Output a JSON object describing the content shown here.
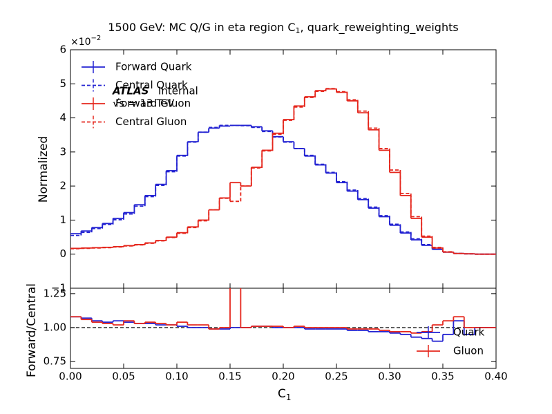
{
  "chart_data": [
    {
      "type": "histogram",
      "title": {
        "text": "1500 GeV: MC Q/G in eta region C",
        "subscript": "1",
        "suffix": ", quark_reweighting_weights"
      },
      "y_offset": {
        "base": "×10",
        "exponent": "−2"
      },
      "ylabel": "Normalized",
      "annotations": {
        "atlas": "ATLAS",
        "internal": "Internal",
        "energy": "√s = 13 TeV"
      },
      "xlim": [
        0,
        0.4
      ],
      "xticks": [
        0,
        0.05,
        0.1,
        0.15,
        0.2,
        0.25,
        0.3,
        0.35,
        0.4
      ],
      "ylim": [
        -1,
        6
      ],
      "yticks": [
        {
          "value": -1,
          "label": "−1"
        },
        0,
        1,
        2,
        3,
        4,
        5,
        6
      ],
      "legend": "upper left",
      "bins": [
        0,
        0.01,
        0.02,
        0.03,
        0.04,
        0.05,
        0.06,
        0.07,
        0.08,
        0.09,
        0.1,
        0.11,
        0.12,
        0.13,
        0.14,
        0.15,
        0.16,
        0.17,
        0.18,
        0.19,
        0.2,
        0.21,
        0.22,
        0.23,
        0.24,
        0.25,
        0.26,
        0.27,
        0.28,
        0.29,
        0.3,
        0.31,
        0.32,
        0.33,
        0.34,
        0.35,
        0.36,
        0.37,
        0.38,
        0.39,
        0.4
      ],
      "series": [
        {
          "name": "Forward Quark",
          "color": "#2323d2",
          "dashed": false,
          "values": [
            0.6,
            0.68,
            0.78,
            0.9,
            1.05,
            1.22,
            1.45,
            1.72,
            2.05,
            2.45,
            2.9,
            3.3,
            3.58,
            3.7,
            3.76,
            3.78,
            3.78,
            3.74,
            3.62,
            3.45,
            3.3,
            3.1,
            2.88,
            2.62,
            2.38,
            2.1,
            1.85,
            1.6,
            1.35,
            1.1,
            0.85,
            0.62,
            0.42,
            0.26,
            0.14,
            0.06,
            0.02,
            0.01,
            0,
            0
          ]
        },
        {
          "name": "Central Quark",
          "color": "#2323d2",
          "dashed": true,
          "values": [
            0.55,
            0.64,
            0.75,
            0.87,
            1.01,
            1.18,
            1.41,
            1.69,
            2.02,
            2.42,
            2.88,
            3.29,
            3.58,
            3.72,
            3.78,
            3.78,
            3.77,
            3.72,
            3.6,
            3.44,
            3.29,
            3.1,
            2.9,
            2.64,
            2.4,
            2.13,
            1.88,
            1.63,
            1.38,
            1.13,
            0.88,
            0.65,
            0.45,
            0.28,
            0.15,
            0.06,
            0.02,
            0.01,
            0,
            0
          ]
        },
        {
          "name": "Forward Gluon",
          "color": "#e5261c",
          "dashed": false,
          "values": [
            0.17,
            0.18,
            0.19,
            0.2,
            0.22,
            0.25,
            0.28,
            0.33,
            0.4,
            0.5,
            0.63,
            0.8,
            1.0,
            1.3,
            1.65,
            2.1,
            2.0,
            2.55,
            3.05,
            3.55,
            3.95,
            4.35,
            4.62,
            4.8,
            4.85,
            4.75,
            4.5,
            4.15,
            3.65,
            3.05,
            2.4,
            1.72,
            1.05,
            0.5,
            0.18,
            0.06,
            0.02,
            0.01,
            0,
            0
          ]
        },
        {
          "name": "Central Gluon",
          "color": "#e5261c",
          "dashed": true,
          "values": [
            0.16,
            0.17,
            0.18,
            0.19,
            0.21,
            0.24,
            0.27,
            0.32,
            0.39,
            0.49,
            0.61,
            0.78,
            0.98,
            1.3,
            1.64,
            1.55,
            2.0,
            2.53,
            3.03,
            3.52,
            3.93,
            4.32,
            4.6,
            4.78,
            4.86,
            4.77,
            4.53,
            4.2,
            3.7,
            3.1,
            2.47,
            1.78,
            1.1,
            0.53,
            0.2,
            0.07,
            0.02,
            0.01,
            0,
            0
          ]
        }
      ]
    },
    {
      "type": "histogram",
      "ylabel": "Forward/Central",
      "xlabel": {
        "text": "C",
        "subscript": "1"
      },
      "xlim": [
        0,
        0.4
      ],
      "xticks": [
        {
          "value": 0,
          "label": "0.00"
        },
        {
          "value": 0.05,
          "label": "0.05"
        },
        {
          "value": 0.1,
          "label": "0.10"
        },
        {
          "value": 0.15,
          "label": "0.15"
        },
        {
          "value": 0.2,
          "label": "0.20"
        },
        {
          "value": 0.25,
          "label": "0.25"
        },
        {
          "value": 0.3,
          "label": "0.30"
        },
        {
          "value": 0.35,
          "label": "0.35"
        },
        {
          "value": 0.4,
          "label": "0.40"
        }
      ],
      "ylim": [
        0.7,
        1.29
      ],
      "yticks": [
        {
          "value": 0.75,
          "label": "0.75"
        },
        {
          "value": 1,
          "label": "1.00"
        },
        {
          "value": 1.25,
          "label": "1.25"
        }
      ],
      "hline": 1,
      "legend": "lower right",
      "bins": [
        0,
        0.01,
        0.02,
        0.03,
        0.04,
        0.05,
        0.06,
        0.07,
        0.08,
        0.09,
        0.1,
        0.11,
        0.12,
        0.13,
        0.14,
        0.15,
        0.16,
        0.17,
        0.18,
        0.19,
        0.2,
        0.21,
        0.22,
        0.23,
        0.24,
        0.25,
        0.26,
        0.27,
        0.28,
        0.29,
        0.3,
        0.31,
        0.32,
        0.33,
        0.34,
        0.35,
        0.36,
        0.37,
        0.38,
        0.39,
        0.4
      ],
      "series": [
        {
          "name": "Quark",
          "color": "#2323d2",
          "dashed": false,
          "values": [
            1.08,
            1.07,
            1.05,
            1.04,
            1.05,
            1.04,
            1.03,
            1.03,
            1.02,
            1.02,
            1.01,
            1.0,
            1.0,
            0.99,
            0.99,
            1.0,
            1.0,
            1.01,
            1.01,
            1.0,
            1.0,
            1.0,
            0.99,
            0.99,
            0.99,
            0.99,
            0.98,
            0.98,
            0.97,
            0.97,
            0.96,
            0.95,
            0.93,
            0.92,
            0.9,
            0.95,
            1.05,
            0.95,
            1.0,
            1.0
          ]
        },
        {
          "name": "Gluon",
          "color": "#e5261c",
          "dashed": false,
          "values": [
            1.08,
            1.06,
            1.04,
            1.03,
            1.02,
            1.05,
            1.03,
            1.04,
            1.03,
            1.02,
            1.04,
            1.02,
            1.02,
            0.99,
            1.0,
            1.36,
            1.0,
            1.01,
            1.01,
            1.01,
            1.0,
            1.01,
            1.0,
            1.0,
            1.0,
            1.0,
            0.99,
            0.99,
            0.99,
            0.98,
            0.97,
            0.97,
            0.96,
            0.97,
            1.02,
            1.05,
            1.08,
            1.0,
            1.0,
            1.0
          ]
        }
      ]
    }
  ]
}
